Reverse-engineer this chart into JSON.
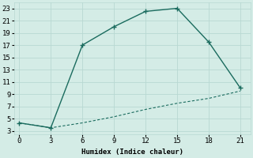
{
  "xlabel": "Humidex (Indice chaleur)",
  "line1_x": [
    0,
    3,
    6,
    9,
    12,
    15,
    18,
    21
  ],
  "line1_y": [
    4.3,
    3.5,
    17,
    20,
    22.5,
    23,
    17.5,
    10
  ],
  "line2_x": [
    0,
    3,
    6,
    9,
    12,
    15,
    18,
    21
  ],
  "line2_y": [
    4.3,
    3.5,
    4.3,
    5.3,
    6.5,
    7.5,
    8.3,
    9.5
  ],
  "line_color": "#1a6b5e",
  "bg_color": "#d4ece6",
  "grid_color": "#b8d8d2",
  "xlim": [
    -0.5,
    22
  ],
  "ylim": [
    2.5,
    24
  ],
  "xticks": [
    0,
    3,
    6,
    9,
    12,
    15,
    18,
    21
  ],
  "yticks": [
    3,
    5,
    7,
    9,
    11,
    13,
    15,
    17,
    19,
    21,
    23
  ],
  "marker": "+"
}
